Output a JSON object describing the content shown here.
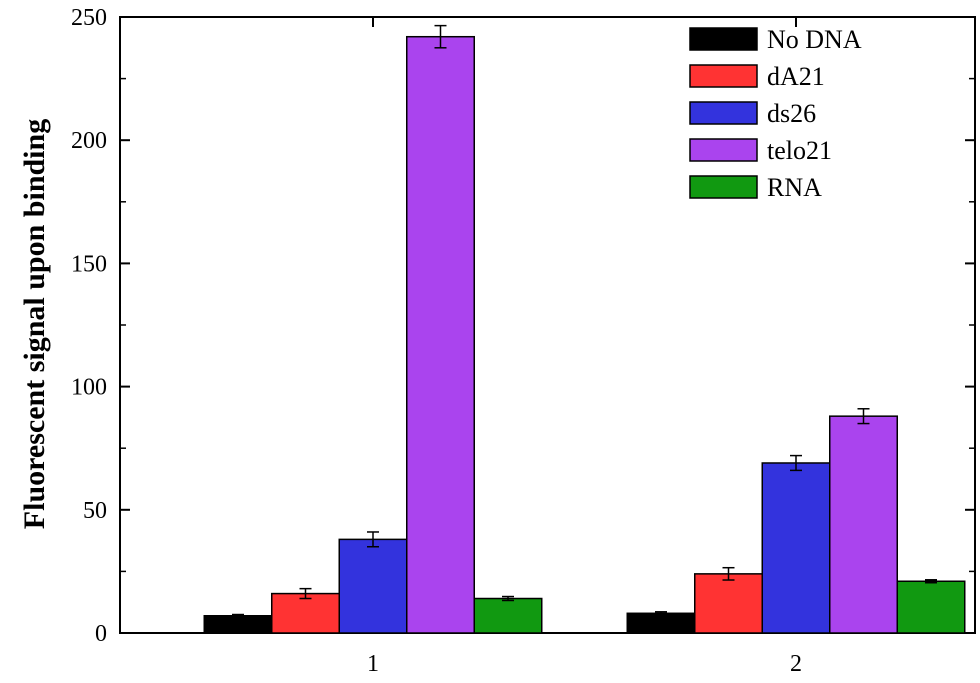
{
  "chart_data": {
    "type": "bar",
    "title": "",
    "xlabel": "",
    "ylabel": "Fluorescent signal upon binding",
    "categories": [
      "1",
      "2"
    ],
    "ylim": [
      0,
      250
    ],
    "yticks": [
      0,
      50,
      100,
      150,
      200,
      250
    ],
    "grid": false,
    "legend_position": "top-right",
    "series": [
      {
        "name": "No DNA",
        "color": "#000000",
        "values": [
          7,
          8
        ],
        "errors": [
          0.5,
          0.6
        ]
      },
      {
        "name": "dA21",
        "color": "#ff3333",
        "values": [
          16,
          24
        ],
        "errors": [
          2,
          2.5
        ]
      },
      {
        "name": "ds26",
        "color": "#3333dd",
        "values": [
          38,
          69
        ],
        "errors": [
          3,
          3
        ]
      },
      {
        "name": "telo21",
        "color": "#aa44ee",
        "values": [
          242,
          88
        ],
        "errors": [
          4.5,
          3
        ]
      },
      {
        "name": "RNA",
        "color": "#119911",
        "values": [
          14,
          21
        ],
        "errors": [
          0.8,
          0.6
        ]
      }
    ]
  }
}
